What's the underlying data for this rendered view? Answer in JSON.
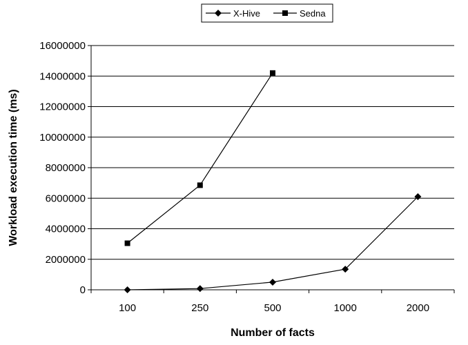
{
  "chart_data": {
    "type": "line",
    "title": "",
    "xlabel": "Number of facts",
    "ylabel": "Workload execution time (ms)",
    "categories": [
      "100",
      "250",
      "500",
      "1000",
      "2000"
    ],
    "ylim": [
      0,
      16000000
    ],
    "yticks": [
      "0",
      "2000000",
      "4000000",
      "6000000",
      "8000000",
      "10000000",
      "12000000",
      "14000000",
      "16000000"
    ],
    "grid": true,
    "legend_position": "top-center",
    "series": [
      {
        "name": "X-Hive",
        "marker": "diamond",
        "color": "#000000",
        "values": [
          0,
          80000,
          500000,
          1350000,
          6100000
        ]
      },
      {
        "name": "Sedna",
        "marker": "square",
        "color": "#000000",
        "values": [
          3050000,
          6850000,
          14200000,
          null,
          null
        ]
      }
    ]
  }
}
